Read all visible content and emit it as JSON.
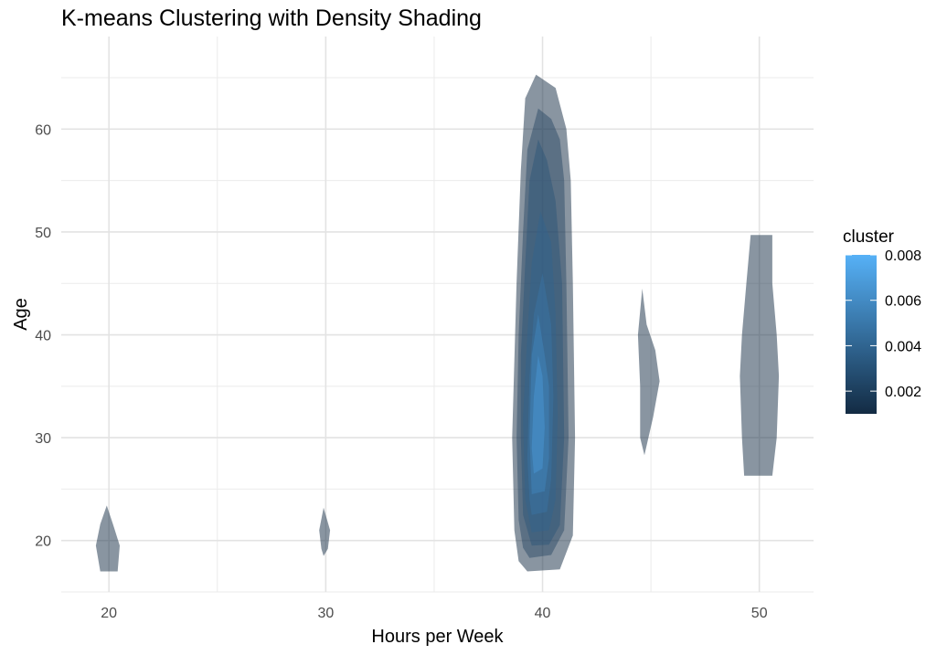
{
  "chart_data": {
    "type": "contour",
    "title": "K-means Clustering with Density Shading",
    "xlabel": "Hours per Week",
    "ylabel": "Age",
    "xlim": [
      17.8,
      52.5
    ],
    "ylim": [
      15,
      69
    ],
    "x_ticks": [
      20,
      30,
      40,
      50
    ],
    "y_ticks": [
      20,
      30,
      40,
      50,
      60
    ],
    "grid": true,
    "fill": "density",
    "legend": {
      "title": "cluster",
      "position": "right",
      "range": [
        0.001,
        0.008
      ],
      "ticks": [
        {
          "value": 0.008,
          "label": "0.008"
        },
        {
          "value": 0.006,
          "label": "0.006"
        },
        {
          "value": 0.004,
          "label": "0.004"
        },
        {
          "value": 0.002,
          "label": "0.002"
        }
      ],
      "color_low": "#132B43",
      "color_high": "#56B1F7"
    },
    "regions": [
      {
        "hours": 20,
        "level": 0.001,
        "shape": [
          [
            19.6,
            17
          ],
          [
            20.4,
            17
          ],
          [
            20.5,
            19.5
          ],
          [
            20.2,
            21.5
          ],
          [
            19.9,
            23.4
          ],
          [
            19.6,
            21.6
          ],
          [
            19.4,
            19.5
          ]
        ]
      },
      {
        "hours": 30,
        "level": 0.001,
        "shape": [
          [
            29.9,
            18.5
          ],
          [
            30.1,
            19.2
          ],
          [
            30.2,
            21
          ],
          [
            29.9,
            23.2
          ],
          [
            29.7,
            21
          ],
          [
            29.8,
            19.2
          ]
        ]
      },
      {
        "hours": 40,
        "level": 0.001,
        "shape": [
          [
            39.3,
            17
          ],
          [
            40.8,
            17.2
          ],
          [
            41.4,
            20.5
          ],
          [
            41.5,
            30
          ],
          [
            41.4,
            45
          ],
          [
            41.3,
            55
          ],
          [
            41.1,
            60
          ],
          [
            40.6,
            64
          ],
          [
            39.7,
            65.3
          ],
          [
            39.2,
            63
          ],
          [
            39.0,
            56
          ],
          [
            38.8,
            45
          ],
          [
            38.6,
            30
          ],
          [
            38.7,
            21
          ],
          [
            38.9,
            18
          ]
        ]
      },
      {
        "hours": 40,
        "level": 0.002,
        "shape": [
          [
            39.4,
            18.3
          ],
          [
            40.4,
            18.6
          ],
          [
            41.0,
            21
          ],
          [
            41.2,
            30
          ],
          [
            41.1,
            45
          ],
          [
            41.0,
            55
          ],
          [
            40.8,
            59
          ],
          [
            40.4,
            61
          ],
          [
            39.8,
            62
          ],
          [
            39.3,
            58
          ],
          [
            39.1,
            50
          ],
          [
            38.9,
            40
          ],
          [
            38.8,
            30
          ],
          [
            38.9,
            22
          ],
          [
            39.1,
            19.3
          ]
        ]
      },
      {
        "hours": 40,
        "level": 0.003,
        "shape": [
          [
            39.5,
            19.5
          ],
          [
            40.3,
            19.6
          ],
          [
            40.8,
            21.5
          ],
          [
            41.0,
            30
          ],
          [
            40.9,
            45
          ],
          [
            40.6,
            53
          ],
          [
            40.2,
            57
          ],
          [
            39.8,
            59
          ],
          [
            39.4,
            55
          ],
          [
            39.2,
            47
          ],
          [
            39.0,
            38
          ],
          [
            39.0,
            30
          ],
          [
            39.1,
            22.5
          ]
        ]
      },
      {
        "hours": 40,
        "level": 0.004,
        "shape": [
          [
            39.5,
            20.8
          ],
          [
            40.3,
            21
          ],
          [
            40.6,
            24
          ],
          [
            40.7,
            32
          ],
          [
            40.6,
            42
          ],
          [
            40.4,
            49
          ],
          [
            39.9,
            52
          ],
          [
            39.5,
            47
          ],
          [
            39.3,
            40
          ],
          [
            39.1,
            32
          ],
          [
            39.2,
            24
          ]
        ]
      },
      {
        "hours": 40,
        "level": 0.005,
        "shape": [
          [
            39.5,
            22.5
          ],
          [
            40.2,
            22.8
          ],
          [
            40.4,
            26
          ],
          [
            40.5,
            34
          ],
          [
            40.4,
            41
          ],
          [
            40.0,
            46
          ],
          [
            39.6,
            42
          ],
          [
            39.4,
            36
          ],
          [
            39.3,
            28
          ],
          [
            39.4,
            24
          ]
        ]
      },
      {
        "hours": 40,
        "level": 0.006,
        "shape": [
          [
            39.5,
            24.5
          ],
          [
            40.1,
            24.8
          ],
          [
            40.3,
            28
          ],
          [
            40.3,
            35
          ],
          [
            40.1,
            38
          ],
          [
            39.8,
            42
          ],
          [
            39.5,
            38
          ],
          [
            39.4,
            30
          ]
        ]
      },
      {
        "hours": 40,
        "level": 0.007,
        "shape": [
          [
            39.6,
            26.5
          ],
          [
            40.0,
            27
          ],
          [
            40.1,
            31
          ],
          [
            40.0,
            36
          ],
          [
            39.8,
            38
          ],
          [
            39.6,
            34
          ],
          [
            39.5,
            29
          ]
        ]
      },
      {
        "hours": 45,
        "level": 0.001,
        "shape": [
          [
            44.7,
            28.3
          ],
          [
            45.1,
            32
          ],
          [
            45.4,
            35.5
          ],
          [
            45.2,
            38.5
          ],
          [
            44.8,
            41
          ],
          [
            44.6,
            44.5
          ],
          [
            44.4,
            40
          ],
          [
            44.5,
            35
          ],
          [
            44.5,
            30
          ]
        ]
      },
      {
        "hours": 50,
        "level": 0.001,
        "shape": [
          [
            49.3,
            26.3
          ],
          [
            50.6,
            26.3
          ],
          [
            50.8,
            30
          ],
          [
            50.9,
            36
          ],
          [
            50.8,
            40
          ],
          [
            50.6,
            45
          ],
          [
            50.6,
            49.7
          ],
          [
            49.6,
            49.7
          ],
          [
            49.4,
            45
          ],
          [
            49.2,
            40
          ],
          [
            49.1,
            36
          ],
          [
            49.2,
            30
          ]
        ]
      }
    ]
  }
}
